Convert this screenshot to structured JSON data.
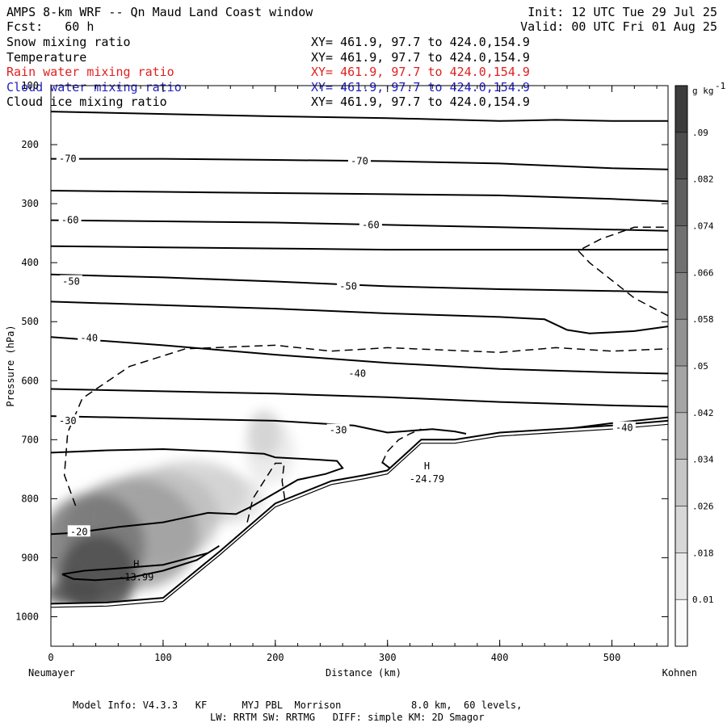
{
  "header": {
    "title": "AMPS 8-km WRF -- Qn Maud Land Coast window",
    "fcst": "Fcst:   60 h",
    "init": "Init: 12 UTC Tue 29 Jul 25",
    "valid": "Valid: 00 UTC Fri 01 Aug 25"
  },
  "fields": [
    {
      "label": "Snow mixing ratio",
      "xy": "XY= 461.9, 97.7 to 424.0,154.9",
      "color": "#000000"
    },
    {
      "label": "Temperature",
      "xy": "XY= 461.9, 97.7 to 424.0,154.9",
      "color": "#000000"
    },
    {
      "label": "Rain water mixing ratio",
      "xy": "XY= 461.9, 97.7 to 424.0,154.9",
      "color": "#e02020"
    },
    {
      "label": "Cloud water mixing ratio",
      "xy": "XY= 461.9, 97.7 to 424.0,154.9",
      "color": "#2020c0"
    },
    {
      "label": "Cloud ice mixing ratio",
      "xy": "XY= 461.9, 97.7 to 424.0,154.9",
      "color": "#000000"
    }
  ],
  "footer": {
    "line1": "Model Info: V4.3.3   KF      MYJ PBL  Morrison            8.0 km,  60 levels,",
    "line2": "LW: RRTM SW: RRTMG   DIFF: simple KM: 2D Smagor"
  },
  "chart_data": {
    "type": "contour",
    "xlabel": "Distance (km)",
    "ylabel": "Pressure (hPa)",
    "xlim": [
      0,
      550
    ],
    "ylim": [
      1050,
      100
    ],
    "x_ticks": [
      0,
      100,
      200,
      300,
      400,
      500
    ],
    "y_ticks": [
      100,
      200,
      300,
      400,
      500,
      600,
      700,
      800,
      900,
      1000
    ],
    "x_start_label": "Neumayer",
    "x_end_label": "Kohnen",
    "colorbar": {
      "unit": "g kg",
      "unit_exp": "-1",
      "ticks": [
        "0.01",
        ".018",
        ".026",
        ".034",
        ".042",
        ".05",
        ".058",
        ".066",
        ".074",
        ".082",
        ".09"
      ],
      "tick_values": [
        0.01,
        0.018,
        0.026,
        0.034,
        0.042,
        0.05,
        0.058,
        0.066,
        0.074,
        0.082,
        0.09
      ],
      "range": [
        0.006,
        0.098
      ]
    },
    "temperature_labels": [
      {
        "text": "-70",
        "x": 15,
        "p": 224
      },
      {
        "text": "-70",
        "x": 275,
        "p": 228
      },
      {
        "text": "-60",
        "x": 17,
        "p": 328
      },
      {
        "text": "-60",
        "x": 285,
        "p": 336
      },
      {
        "text": "-50",
        "x": 18,
        "p": 432
      },
      {
        "text": "-50",
        "x": 265,
        "p": 440
      },
      {
        "text": "-40",
        "x": 34,
        "p": 528
      },
      {
        "text": "-40",
        "x": 273,
        "p": 588
      },
      {
        "text": "-30",
        "x": 15,
        "p": 668
      },
      {
        "text": "-30",
        "x": 256,
        "p": 684
      },
      {
        "text": "-40",
        "x": 511,
        "p": 680
      },
      {
        "text": "-20",
        "x": 25,
        "p": 856
      }
    ],
    "extrema": [
      {
        "symbol": "H",
        "value": "-13.99",
        "x": 66,
        "p": 922
      },
      {
        "symbol": "H",
        "value": "-24.79",
        "x": 325,
        "p": 756
      }
    ],
    "isotherms": [
      {
        "x": [
          0,
          100,
          200,
          300,
          400,
          450,
          500,
          550
        ],
        "p": [
          144,
          148,
          152,
          155,
          160,
          158,
          160,
          160
        ]
      },
      {
        "x": [
          0,
          100,
          200,
          300,
          400,
          500,
          550
        ],
        "p": [
          224,
          224,
          226,
          228,
          232,
          240,
          242
        ]
      },
      {
        "x": [
          0,
          100,
          200,
          300,
          400,
          500,
          550
        ],
        "p": [
          278,
          280,
          282,
          284,
          286,
          292,
          296
        ]
      },
      {
        "x": [
          0,
          100,
          200,
          300,
          400,
          500,
          550
        ],
        "p": [
          328,
          330,
          332,
          336,
          340,
          344,
          346
        ]
      },
      {
        "x": [
          0,
          100,
          200,
          300,
          400,
          500,
          550
        ],
        "p": [
          372,
          374,
          376,
          378,
          378,
          378,
          378
        ]
      },
      {
        "x": [
          0,
          100,
          200,
          300,
          400,
          500,
          550
        ],
        "p": [
          420,
          425,
          432,
          440,
          445,
          448,
          450
        ]
      },
      {
        "x": [
          0,
          100,
          200,
          300,
          400,
          440,
          460,
          480,
          520,
          550
        ],
        "p": [
          466,
          472,
          478,
          486,
          492,
          496,
          514,
          520,
          516,
          508
        ]
      },
      {
        "x": [
          0,
          100,
          200,
          300,
          400,
          500,
          550
        ],
        "p": [
          526,
          540,
          556,
          570,
          580,
          586,
          588
        ]
      },
      {
        "x": [
          0,
          100,
          200,
          300,
          400,
          500,
          550
        ],
        "p": [
          614,
          618,
          622,
          628,
          636,
          642,
          644
        ]
      },
      {
        "x": [
          0,
          100,
          200,
          270,
          300,
          340,
          360,
          370
        ],
        "p": [
          660,
          664,
          668,
          676,
          688,
          682,
          686,
          690
        ]
      },
      {
        "x": [
          0,
          50,
          100,
          150,
          190,
          200,
          240,
          255,
          260,
          245,
          220,
          200,
          180,
          165,
          140,
          120,
          100,
          60,
          20,
          0
        ],
        "p": [
          722,
          718,
          716,
          720,
          724,
          730,
          734,
          736,
          748,
          758,
          768,
          790,
          812,
          826,
          824,
          832,
          840,
          848,
          858,
          860
        ]
      },
      {
        "x": [
          10,
          30,
          60,
          100,
          140,
          150,
          130,
          100,
          70,
          40,
          20,
          10
        ],
        "p": [
          928,
          922,
          918,
          912,
          892,
          880,
          904,
          922,
          934,
          938,
          936,
          928
        ]
      },
      {
        "x": [
          295,
          310,
          320,
          340,
          360,
          380,
          400,
          450,
          500,
          550
        ],
        "p": [
          738,
          760,
          776,
          770,
          740,
          708,
          690,
          684,
          672,
          662
        ]
      }
    ],
    "terrain": {
      "x": [
        0,
        50,
        100,
        150,
        200,
        250,
        280,
        300,
        330,
        360,
        400,
        450,
        500,
        550
      ],
      "p": [
        978,
        976,
        968,
        890,
        808,
        770,
        760,
        752,
        700,
        700,
        688,
        682,
        676,
        668
      ]
    },
    "cloud_dashed": [
      {
        "x": [
          22,
          12,
          15,
          28,
          70,
          120,
          200,
          250,
          300,
          400,
          450,
          500,
          550
        ],
        "p": [
          812,
          760,
          688,
          630,
          576,
          546,
          540,
          550,
          544,
          552,
          544,
          550,
          546
        ]
      },
      {
        "x": [
          550,
          520,
          480,
          470,
          490,
          520,
          550
        ],
        "p": [
          490,
          460,
          400,
          380,
          360,
          340,
          340
        ]
      },
      {
        "x": [
          175,
          180,
          200,
          208,
          206,
          210
        ],
        "p": [
          840,
          800,
          740,
          740,
          770,
          820
        ]
      },
      {
        "x": [
          295,
          300,
          310,
          320,
          330
        ],
        "p": [
          740,
          720,
          700,
          690,
          682
        ]
      }
    ],
    "snow_field": [
      {
        "x": 42,
        "p": 930,
        "rx": 34,
        "rp": 70,
        "v": 0.09
      },
      {
        "x": 38,
        "p": 880,
        "rx": 46,
        "rp": 90,
        "v": 0.07
      },
      {
        "x": 72,
        "p": 860,
        "rx": 60,
        "rp": 95,
        "v": 0.05
      },
      {
        "x": 95,
        "p": 830,
        "rx": 55,
        "rp": 80,
        "v": 0.035
      },
      {
        "x": 125,
        "p": 790,
        "rx": 50,
        "rp": 55,
        "v": 0.026
      },
      {
        "x": 150,
        "p": 800,
        "rx": 40,
        "rp": 45,
        "v": 0.018
      },
      {
        "x": 190,
        "p": 690,
        "rx": 15,
        "rp": 40,
        "v": 0.026
      },
      {
        "x": 195,
        "p": 720,
        "rx": 22,
        "rp": 55,
        "v": 0.014
      },
      {
        "x": 20,
        "p": 960,
        "rx": 26,
        "rp": 22,
        "v": 0.09
      }
    ]
  }
}
